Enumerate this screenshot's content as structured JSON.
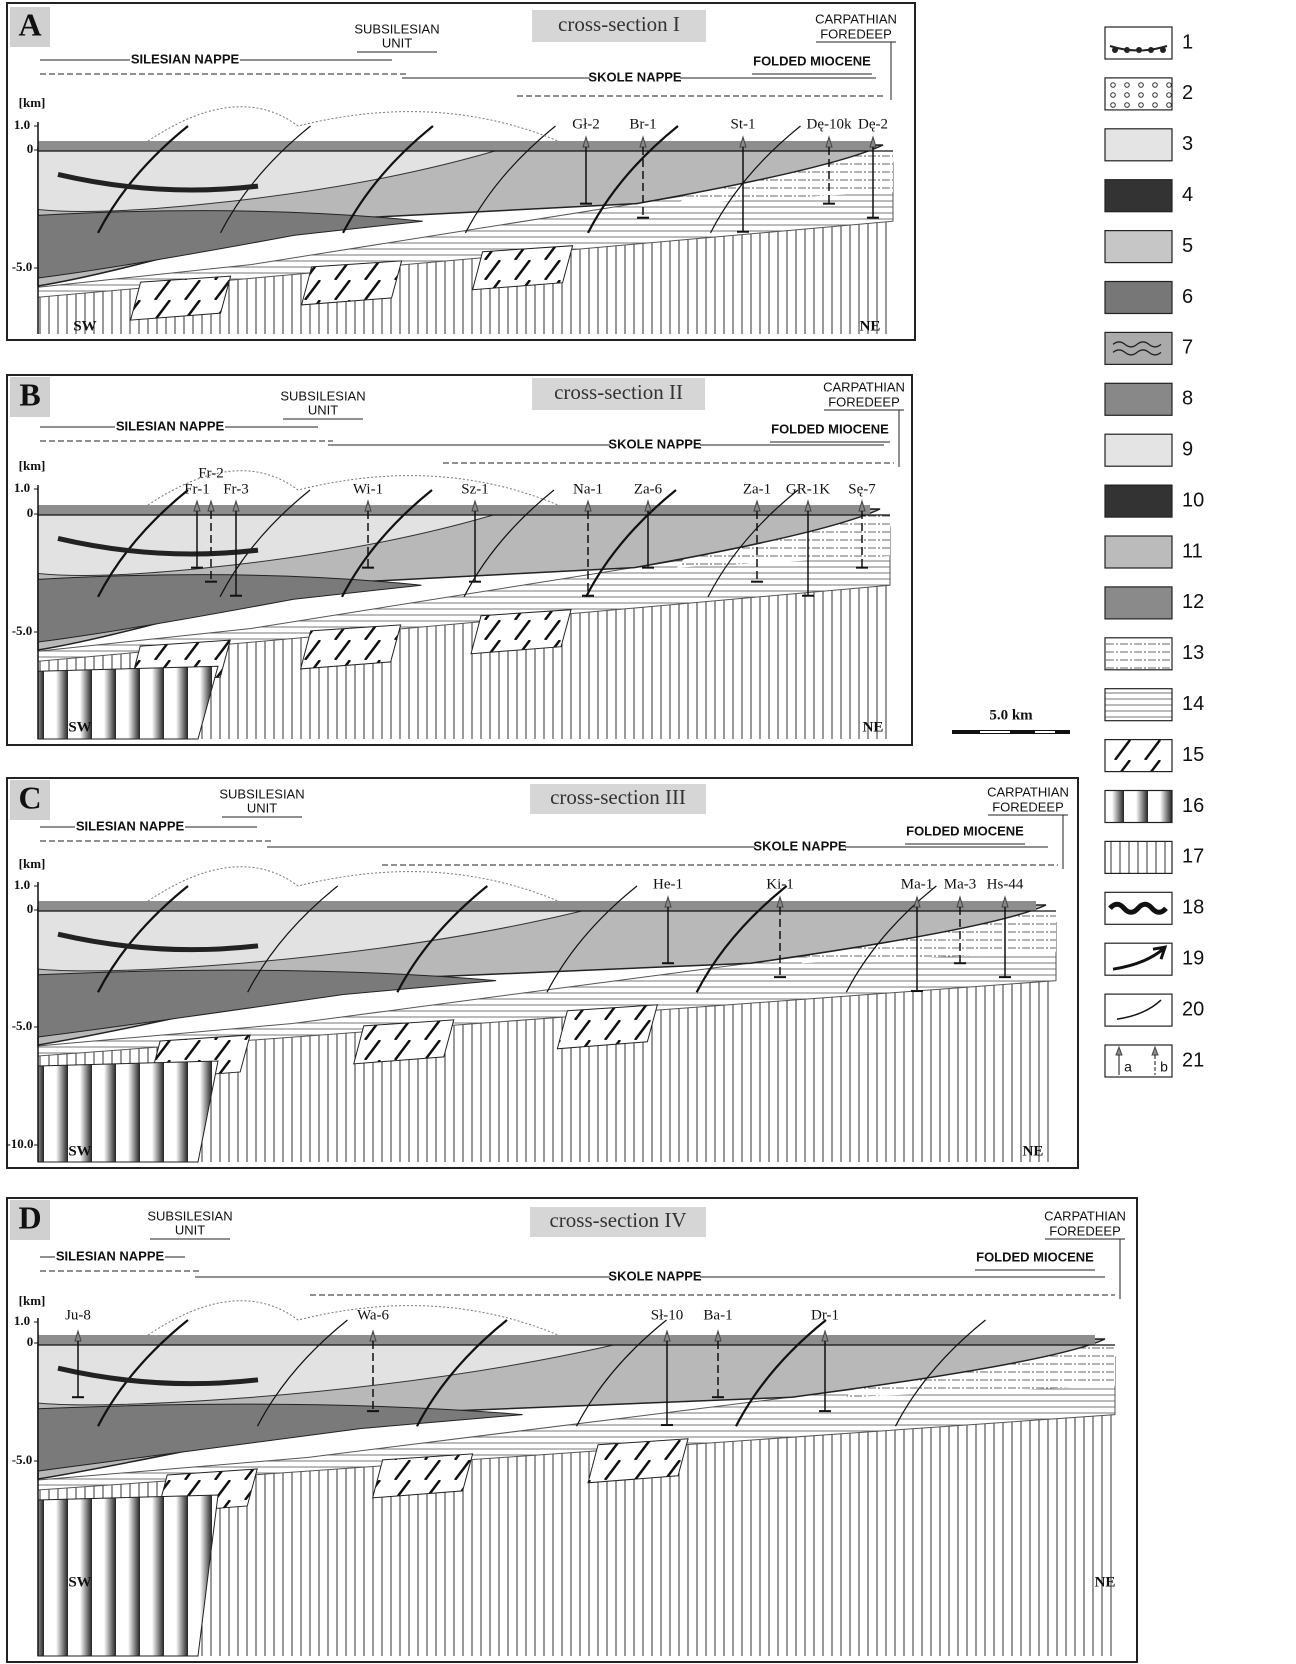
{
  "panels": [
    {
      "letter": "A",
      "title": "cross-section I",
      "subsilesian": [
        "SUBSILESIAN",
        "UNIT"
      ],
      "foredeep": [
        "CARPATHIAN",
        "FOREDEEP"
      ],
      "silesian": "SILESIAN NAPPE",
      "skole": "SKOLE NAPPE",
      "miocene": "FOLDED MIOCENE",
      "axis": [
        "[km]",
        "1.0",
        "0",
        "-5.0"
      ],
      "wells": [
        "Gł-2",
        "Br-1",
        "St-1",
        "Dę-10k",
        "Dę-2"
      ],
      "sw": "SW",
      "ne": "NE"
    },
    {
      "letter": "B",
      "title": "cross-section II",
      "subsilesian": [
        "SUBSILESIAN",
        "UNIT"
      ],
      "foredeep": [
        "CARPATHIAN",
        "FOREDEEP"
      ],
      "silesian": "SILESIAN NAPPE",
      "skole": "SKOLE NAPPE",
      "miocene": "FOLDED MIOCENE",
      "axis": [
        "[km]",
        "1.0",
        "0",
        "-5.0"
      ],
      "wells": [
        "Fr-1",
        "Fr-2",
        "Fr-3",
        "Wi-1",
        "Sz-1",
        "Na-1",
        "Za-6",
        "Za-1",
        "GR-1K",
        "Sę-7"
      ],
      "sw": "SW",
      "ne": "NE"
    },
    {
      "letter": "C",
      "title": "cross-section III",
      "subsilesian": [
        "SUBSILESIAN",
        "UNIT"
      ],
      "foredeep": [
        "CARPATHIAN",
        "FOREDEEP"
      ],
      "silesian": "SILESIAN NAPPE",
      "skole": "SKOLE NAPPE",
      "miocene": "FOLDED MIOCENE",
      "axis": [
        "[km]",
        "1.0",
        "0",
        "-5.0",
        "-10.0"
      ],
      "wells": [
        "He-1",
        "Ki-1",
        "Ma-1",
        "Ma-3",
        "Hs-44"
      ],
      "sw": "SW",
      "ne": "NE"
    },
    {
      "letter": "D",
      "title": "cross-section IV",
      "subsilesian": [
        "SUBSILESIAN",
        "UNIT"
      ],
      "foredeep": [
        "CARPATHIAN",
        "FOREDEEP"
      ],
      "silesian": "SILESIAN NAPPE",
      "skole": "SKOLE NAPPE",
      "miocene": "FOLDED MIOCENE",
      "axis": [
        "[km]",
        "1.0",
        "0",
        "-5.0"
      ],
      "wells": [
        "Ju-8",
        "Wa-6",
        "Sł-10",
        "Ba-1",
        "Dr-1"
      ],
      "sw": "SW",
      "ne": "NE"
    }
  ],
  "legend": [
    "1",
    "2",
    "3",
    "4",
    "5",
    "6",
    "7",
    "8",
    "9",
    "10",
    "11",
    "12",
    "13",
    "14",
    "15",
    "16",
    "17",
    "18",
    "19",
    "20",
    "21"
  ],
  "legend_well_labels": [
    "a",
    "b"
  ],
  "scale": "5.0 km"
}
